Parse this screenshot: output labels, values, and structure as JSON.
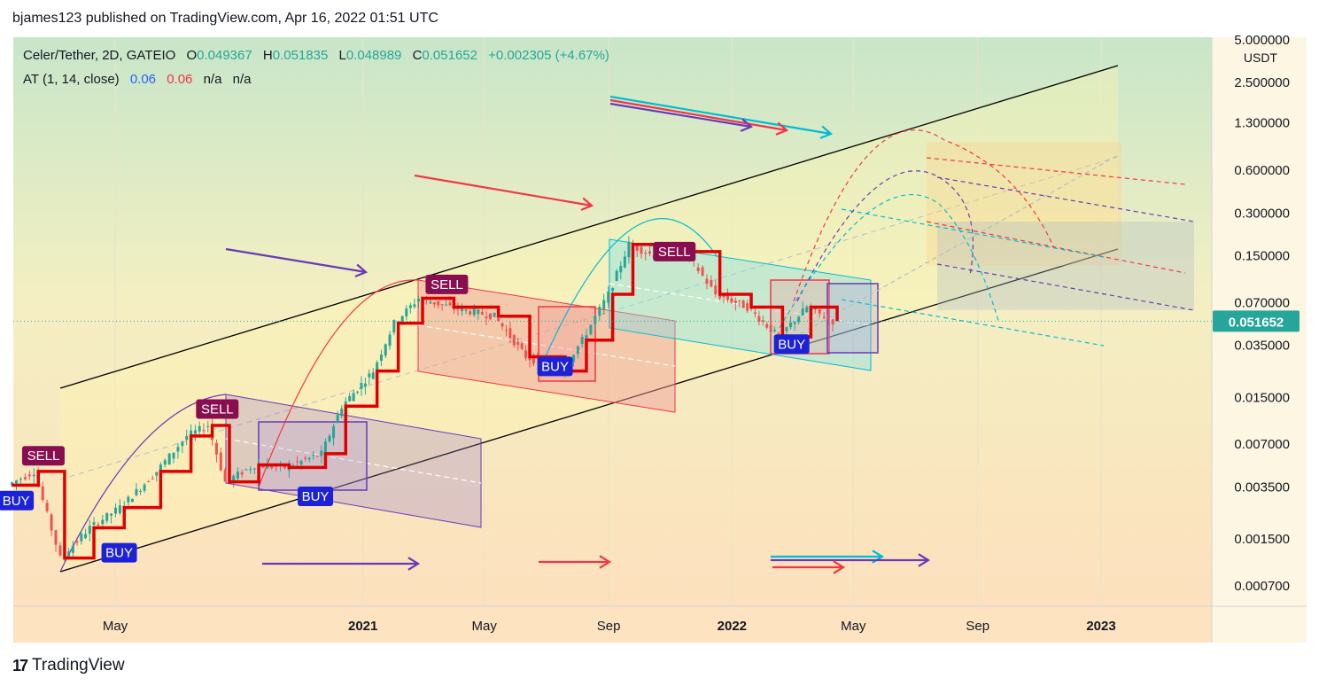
{
  "header": {
    "publisher_line": "bjames123 published on TradingView.com, Apr 16, 2022 01:51 UTC"
  },
  "legend": {
    "symbol": "Celer/Tether, 2D, GATEIO",
    "o_label": "O",
    "o_value": "0.049367",
    "h_label": "H",
    "h_value": "0.051835",
    "l_label": "L",
    "l_value": "0.048989",
    "c_label": "C",
    "c_value": "0.051652",
    "change": "+0.002305 (+4.67%)",
    "indicator_name": "AT (1, 14, close)",
    "ind_val1": "0.06",
    "ind_val2": "0.06",
    "ind_na1": "n/a",
    "ind_na2": "n/a"
  },
  "footer": {
    "brand": "TradingView"
  },
  "colors": {
    "up": "#26a69a",
    "down": "#ef5350",
    "accent_red": "#f23645",
    "accent_purple": "#673ab7",
    "accent_cyan": "#00bcd4",
    "buy_bg": "#1d22d8",
    "sell_bg": "#880e4f",
    "price_tag": "#26a69a"
  },
  "chart_data": {
    "type": "line",
    "scale": "log",
    "y_unit": "USDT",
    "y_ticks": [
      "5.000000",
      "2.500000",
      "1.300000",
      "0.600000",
      "0.300000",
      "0.150000",
      "0.070000",
      "0.035000",
      "0.015000",
      "0.007000",
      "0.003500",
      "0.001500",
      "0.000700"
    ],
    "x_ticks": [
      "May",
      "2021",
      "May",
      "Sep",
      "2022",
      "May",
      "Sep",
      "2023"
    ],
    "last_price": "0.051652",
    "series": [
      {
        "values": [
          [
            "2020-01-20",
            0.0036
          ],
          [
            "2020-02-15",
            0.0045
          ],
          [
            "2020-03-12",
            0.0011
          ],
          [
            "2020-04-10",
            0.0018
          ],
          [
            "2020-05-10",
            0.0025
          ],
          [
            "2020-06-15",
            0.0045
          ],
          [
            "2020-07-15",
            0.008
          ],
          [
            "2020-08-05",
            0.0095
          ],
          [
            "2020-08-22",
            0.0038
          ],
          [
            "2020-09-20",
            0.005
          ],
          [
            "2020-10-20",
            0.0048
          ],
          [
            "2020-11-25",
            0.006
          ],
          [
            "2020-12-15",
            0.013
          ],
          [
            "2021-01-15",
            0.023
          ],
          [
            "2021-02-05",
            0.05
          ],
          [
            "2021-03-01",
            0.075
          ],
          [
            "2021-04-01",
            0.065
          ],
          [
            "2021-05-15",
            0.056
          ],
          [
            "2021-06-15",
            0.029
          ],
          [
            "2021-07-20",
            0.023
          ],
          [
            "2021-08-10",
            0.038
          ],
          [
            "2021-09-05",
            0.08
          ],
          [
            "2021-09-25",
            0.18
          ],
          [
            "2021-10-20",
            0.15
          ],
          [
            "2021-11-20",
            0.16
          ],
          [
            "2021-12-20",
            0.08
          ],
          [
            "2022-01-20",
            0.065
          ],
          [
            "2022-02-20",
            0.04
          ],
          [
            "2022-03-20",
            0.065
          ],
          [
            "2022-04-15",
            0.0517
          ]
        ]
      }
    ],
    "signals": [
      {
        "label": "BUY",
        "date": "2020-01-24",
        "price": 0.0028
      },
      {
        "label": "SELL",
        "date": "2020-02-20",
        "price": 0.0058
      },
      {
        "label": "BUY",
        "date": "2020-05-05",
        "price": 0.0012
      },
      {
        "label": "SELL",
        "date": "2020-08-10",
        "price": 0.0124
      },
      {
        "label": "BUY",
        "date": "2020-11-15",
        "price": 0.003
      },
      {
        "label": "SELL",
        "date": "2021-03-25",
        "price": 0.094
      },
      {
        "label": "BUY",
        "date": "2021-07-10",
        "price": 0.0248
      },
      {
        "label": "SELL",
        "date": "2021-11-05",
        "price": 0.16
      },
      {
        "label": "BUY",
        "date": "2022-03-01",
        "price": 0.0356
      }
    ]
  }
}
